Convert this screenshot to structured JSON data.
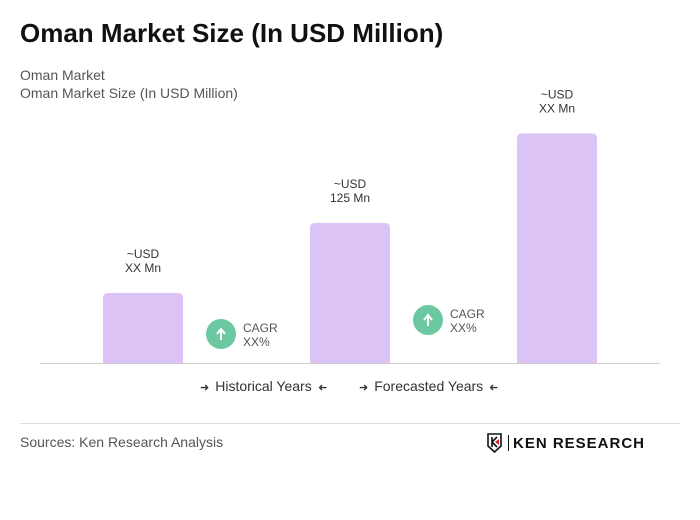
{
  "title": "Oman Market Size (In USD Million)",
  "subtitle1": "Oman Market",
  "subtitle2": "Oman Market Size (In USD Million)",
  "chart_data": {
    "type": "bar",
    "categories": [
      "",
      "",
      ""
    ],
    "values": [
      62.5,
      125,
      205
    ],
    "data_labels": [
      [
        "~USD",
        "XX Mn"
      ],
      [
        "~USD",
        "125 Mn"
      ],
      [
        "~USD",
        "XX Mn"
      ]
    ],
    "bar_color": "#dcc3f6",
    "cagr": [
      {
        "label": "CAGR",
        "value": "XX%"
      },
      {
        "label": "CAGR",
        "value": "XX%"
      }
    ],
    "cagr_color": "#6cc8a1",
    "grid": false
  },
  "legend": {
    "historical": "Historical Years",
    "forecasted": "Forecasted Years",
    "arrow_right": "➜",
    "arrow_left": "➜"
  },
  "footer": {
    "sources": "Sources: Ken Research Analysis",
    "logo_text": "KEN RESEARCH"
  }
}
